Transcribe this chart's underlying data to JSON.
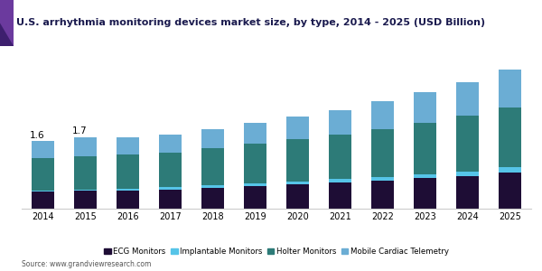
{
  "title": "U.S. arrhythmia monitoring devices market size, by type, 2014 - 2025 (USD Billion)",
  "source": "Source: www.grandviewresearch.com",
  "years": [
    2014,
    2015,
    2016,
    2017,
    2018,
    2019,
    2020,
    2021,
    2022,
    2023,
    2024,
    2025
  ],
  "ecg_monitors": [
    0.4,
    0.42,
    0.44,
    0.46,
    0.5,
    0.54,
    0.58,
    0.62,
    0.67,
    0.72,
    0.78,
    0.85
  ],
  "implantable_monitors": [
    0.04,
    0.04,
    0.04,
    0.05,
    0.05,
    0.06,
    0.07,
    0.08,
    0.09,
    0.1,
    0.11,
    0.13
  ],
  "holter_monitors": [
    0.76,
    0.78,
    0.8,
    0.82,
    0.88,
    0.94,
    1.0,
    1.06,
    1.14,
    1.22,
    1.32,
    1.42
  ],
  "mobile_cardiac_telemetry": [
    0.4,
    0.46,
    0.42,
    0.43,
    0.47,
    0.51,
    0.55,
    0.59,
    0.65,
    0.72,
    0.79,
    0.9
  ],
  "annotations": [
    "1.6",
    "1.7"
  ],
  "colors": {
    "ecg_monitors": "#1e0d35",
    "implantable_monitors": "#56c4e8",
    "holter_monitors": "#2d7b78",
    "mobile_cardiac_telemetry": "#6badd4"
  },
  "legend_labels": [
    "ECG Monitors",
    "Implantable Monitors",
    "Holter Monitors",
    "Mobile Cardiac Telemetry"
  ],
  "title_color": "#1a1a4e",
  "background_color": "#ffffff",
  "accent_color1": "#6b3a9e",
  "accent_color2": "#3d1f6e",
  "line_color": "#9b59b6",
  "ylim": [
    0,
    3.8
  ]
}
